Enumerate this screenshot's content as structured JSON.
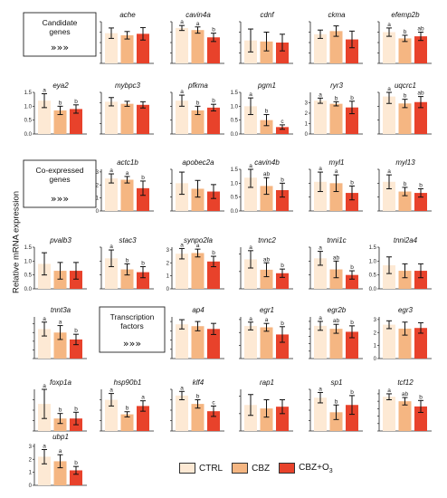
{
  "y_axis_label": "Relative mRNA expression",
  "legend": [
    {
      "label": "CTRL",
      "color": "#fde9d4"
    },
    {
      "label": "CBZ",
      "color": "#f5b682"
    },
    {
      "label": "CBZ+O",
      "subscript": "3",
      "color": "#e8422b"
    }
  ],
  "section_boxes": [
    {
      "label": "Candidate genes",
      "arrows": "»»»"
    },
    {
      "label": "Co-expressed genes",
      "arrows": "»»»"
    },
    {
      "label": "Transcription factors",
      "arrows": "»»»"
    }
  ],
  "chart_data": [
    {
      "type": "bar",
      "title": "ache",
      "categories": [
        "CTRL",
        "CBZ",
        "CBZ+O3"
      ],
      "values": [
        1.45,
        1.35,
        1.42
      ],
      "errors": [
        0.25,
        0.18,
        0.3
      ],
      "letters": [
        "",
        "",
        ""
      ],
      "ylim": [
        0,
        2
      ],
      "yticks": [
        0,
        0.5,
        1,
        1.5,
        2
      ],
      "ytick_labels": [
        "",
        "",
        "",
        "",
        ""
      ]
    },
    {
      "type": "bar",
      "title": "cavin4a",
      "categories": [
        "CTRL",
        "CBZ",
        "CBZ+O3"
      ],
      "values": [
        1.7,
        1.6,
        1.25
      ],
      "errors": [
        0.12,
        0.15,
        0.2
      ],
      "letters": [
        "a",
        "a",
        "b"
      ],
      "ylim": [
        0,
        2
      ],
      "yticks": [
        0,
        0.5,
        1,
        1.5,
        2
      ],
      "ytick_labels": [
        "",
        "",
        "",
        "",
        ""
      ]
    },
    {
      "type": "bar",
      "title": "cdnf",
      "categories": [
        "CTRL",
        "CBZ",
        "CBZ+O3"
      ],
      "values": [
        1.1,
        1.05,
        1.0
      ],
      "errors": [
        0.55,
        0.45,
        0.4
      ],
      "letters": [
        "",
        "",
        ""
      ],
      "ylim": [
        0,
        2
      ],
      "yticks": [
        0,
        0.5,
        1,
        1.5,
        2
      ],
      "ytick_labels": [
        "",
        "",
        "",
        "",
        ""
      ]
    },
    {
      "type": "bar",
      "title": "ckma",
      "categories": [
        "CTRL",
        "CBZ",
        "CBZ+O3"
      ],
      "values": [
        1.4,
        1.55,
        1.15
      ],
      "errors": [
        0.2,
        0.25,
        0.4
      ],
      "letters": [
        "",
        "",
        ""
      ],
      "ylim": [
        0,
        2
      ],
      "yticks": [
        0,
        0.5,
        1,
        1.5,
        2
      ],
      "ytick_labels": [
        "",
        "",
        "",
        "",
        ""
      ]
    },
    {
      "type": "bar",
      "title": "efemp2b",
      "categories": [
        "CTRL",
        "CBZ",
        "CBZ+O3"
      ],
      "values": [
        1.5,
        1.2,
        1.3
      ],
      "errors": [
        0.2,
        0.15,
        0.2
      ],
      "letters": [
        "a",
        "b",
        "ab"
      ],
      "ylim": [
        0,
        2
      ],
      "yticks": [
        0,
        0.5,
        1,
        1.5,
        2
      ],
      "ytick_labels": [
        "",
        "",
        "",
        "",
        ""
      ]
    },
    {
      "type": "bar",
      "title": "eya2",
      "categories": [
        "CTRL",
        "CBZ",
        "CBZ+O3"
      ],
      "values": [
        1.2,
        0.85,
        0.9
      ],
      "errors": [
        0.25,
        0.15,
        0.15
      ],
      "letters": [
        "a",
        "b",
        "b"
      ],
      "ylim": [
        0,
        1.5
      ],
      "yticks": [
        0,
        0.5,
        1.0,
        1.5
      ],
      "ytick_labels": [
        "0.0",
        "0.5",
        "1.0",
        "1.5"
      ]
    },
    {
      "type": "bar",
      "title": "mybpc3",
      "categories": [
        "CTRL",
        "CBZ",
        "CBZ+O3"
      ],
      "values": [
        1.55,
        1.45,
        1.4
      ],
      "errors": [
        0.2,
        0.12,
        0.15
      ],
      "letters": [
        "",
        "",
        ""
      ],
      "ylim": [
        0,
        2
      ],
      "yticks": [
        0,
        0.5,
        1,
        1.5,
        2
      ],
      "ytick_labels": [
        "",
        "",
        "",
        "",
        ""
      ]
    },
    {
      "type": "bar",
      "title": "pfkma",
      "categories": [
        "CTRL",
        "CBZ",
        "CBZ+O3"
      ],
      "values": [
        1.2,
        0.85,
        0.95
      ],
      "errors": [
        0.2,
        0.15,
        0.12
      ],
      "letters": [
        "a",
        "b",
        "b"
      ],
      "ylim": [
        0,
        1.5
      ],
      "yticks": [
        0,
        0.5,
        1.0,
        1.5
      ],
      "ytick_labels": [
        "",
        "",
        "",
        ""
      ]
    },
    {
      "type": "bar",
      "title": "pgm1",
      "categories": [
        "CTRL",
        "CBZ",
        "CBZ+O3"
      ],
      "values": [
        1.0,
        0.5,
        0.25
      ],
      "errors": [
        0.3,
        0.2,
        0.08
      ],
      "letters": [
        "a",
        "b",
        "c"
      ],
      "ylim": [
        0,
        1.5
      ],
      "yticks": [
        0,
        0.5,
        1.0,
        1.5
      ],
      "ytick_labels": [
        "0.0",
        "0.5",
        "1.0",
        "1.5"
      ]
    },
    {
      "type": "bar",
      "title": "ryr3",
      "categories": [
        "CTRL",
        "CBZ",
        "CBZ+O3"
      ],
      "values": [
        3.2,
        2.9,
        2.55
      ],
      "errors": [
        0.25,
        0.2,
        0.6
      ],
      "letters": [
        "a",
        "b",
        "b"
      ],
      "ylim": [
        0,
        4
      ],
      "yticks": [
        0,
        1,
        2,
        3
      ],
      "ytick_labels": [
        "0",
        "1",
        "2",
        "3"
      ]
    },
    {
      "type": "bar",
      "title": "uqcrc1",
      "categories": [
        "CTRL",
        "CBZ",
        "CBZ+O3"
      ],
      "values": [
        1.35,
        1.1,
        1.15
      ],
      "errors": [
        0.25,
        0.15,
        0.2
      ],
      "letters": [
        "a",
        "b",
        "ab"
      ],
      "ylim": [
        0,
        1.5
      ],
      "yticks": [
        0,
        0.5,
        1.0,
        1.5
      ],
      "ytick_labels": [
        "",
        "",
        "",
        ""
      ]
    },
    {
      "type": "bar",
      "title": "actc1b",
      "categories": [
        "CTRL",
        "CBZ",
        "CBZ+O3"
      ],
      "values": [
        2.5,
        2.4,
        1.75
      ],
      "errors": [
        0.35,
        0.25,
        0.55
      ],
      "letters": [
        "a",
        "a",
        "b"
      ],
      "ylim": [
        0,
        3.2
      ],
      "yticks": [
        0,
        1,
        2,
        3
      ],
      "ytick_labels": [
        "0",
        "1",
        "2",
        "3"
      ]
    },
    {
      "type": "bar",
      "title": "apobec2a",
      "categories": [
        "CTRL",
        "CBZ",
        "CBZ+O3"
      ],
      "values": [
        1.0,
        0.8,
        0.7
      ],
      "errors": [
        0.4,
        0.3,
        0.25
      ],
      "letters": [
        "",
        "",
        ""
      ],
      "ylim": [
        0,
        1.5
      ],
      "yticks": [
        0,
        0.5,
        1.0,
        1.5
      ],
      "ytick_labels": [
        "",
        "",
        "",
        ""
      ]
    },
    {
      "type": "bar",
      "title": "cavin4b",
      "categories": [
        "CTRL",
        "CBZ",
        "CBZ+O3"
      ],
      "values": [
        1.2,
        0.9,
        0.75
      ],
      "errors": [
        0.35,
        0.3,
        0.25
      ],
      "letters": [
        "a",
        "ab",
        "b"
      ],
      "ylim": [
        0,
        1.5
      ],
      "yticks": [
        0,
        0.5,
        1.0,
        1.5
      ],
      "ytick_labels": [
        "0.0",
        "0.5",
        "1.0",
        "1.5"
      ]
    },
    {
      "type": "bar",
      "title": "myl1",
      "categories": [
        "CTRL",
        "CBZ",
        "CBZ+O3"
      ],
      "values": [
        1.05,
        1.0,
        0.65
      ],
      "errors": [
        0.35,
        0.3,
        0.25
      ],
      "letters": [
        "a",
        "a",
        "b"
      ],
      "ylim": [
        0,
        1.5
      ],
      "yticks": [
        0,
        0.5,
        1.0,
        1.5
      ],
      "ytick_labels": [
        "",
        "",
        "",
        ""
      ]
    },
    {
      "type": "bar",
      "title": "myl13",
      "categories": [
        "CTRL",
        "CBZ",
        "CBZ+O3"
      ],
      "values": [
        1.05,
        0.7,
        0.65
      ],
      "errors": [
        0.25,
        0.15,
        0.15
      ],
      "letters": [
        "a",
        "b",
        "b"
      ],
      "ylim": [
        0,
        1.5
      ],
      "yticks": [
        0,
        0.5,
        1.0,
        1.5
      ],
      "ytick_labels": [
        "",
        "",
        "",
        ""
      ]
    },
    {
      "type": "bar",
      "title": "pvalb3",
      "categories": [
        "CTRL",
        "CBZ",
        "CBZ+O3"
      ],
      "values": [
        0.9,
        0.65,
        0.65
      ],
      "errors": [
        0.4,
        0.3,
        0.3
      ],
      "letters": [
        "",
        "",
        ""
      ],
      "ylim": [
        0,
        1.5
      ],
      "yticks": [
        0,
        0.5,
        1.0,
        1.5
      ],
      "ytick_labels": [
        "0.0",
        "0.5",
        "1.0",
        "1.5"
      ]
    },
    {
      "type": "bar",
      "title": "stac3",
      "categories": [
        "CTRL",
        "CBZ",
        "CBZ+O3"
      ],
      "values": [
        1.1,
        0.7,
        0.6
      ],
      "errors": [
        0.3,
        0.2,
        0.2
      ],
      "letters": [
        "a",
        "b",
        "b"
      ],
      "ylim": [
        0,
        1.5
      ],
      "yticks": [
        0,
        0.5,
        1.0,
        1.5
      ],
      "ytick_labels": [
        "",
        "",
        "",
        ""
      ]
    },
    {
      "type": "bar",
      "title": "synpo2la",
      "categories": [
        "CTRL",
        "CBZ",
        "CBZ+O3"
      ],
      "values": [
        2.7,
        2.75,
        2.1
      ],
      "errors": [
        0.4,
        0.3,
        0.4
      ],
      "letters": [
        "a",
        "a",
        "b"
      ],
      "ylim": [
        0,
        3.2
      ],
      "yticks": [
        0,
        1,
        2,
        3
      ],
      "ytick_labels": [
        "0",
        "1",
        "2",
        "3"
      ]
    },
    {
      "type": "bar",
      "title": "tnnc2",
      "categories": [
        "CTRL",
        "CBZ",
        "CBZ+O3"
      ],
      "values": [
        0.85,
        0.55,
        0.45
      ],
      "errors": [
        0.25,
        0.2,
        0.12
      ],
      "letters": [
        "a",
        "ab",
        "b"
      ],
      "ylim": [
        0,
        1.2
      ],
      "yticks": [
        0,
        0.5,
        1.0
      ],
      "ytick_labels": [
        "",
        "",
        ""
      ]
    },
    {
      "type": "bar",
      "title": "tnni1c",
      "categories": [
        "CTRL",
        "CBZ",
        "CBZ+O3"
      ],
      "values": [
        1.1,
        0.7,
        0.5
      ],
      "errors": [
        0.25,
        0.3,
        0.15
      ],
      "letters": [
        "a",
        "ab",
        "b"
      ],
      "ylim": [
        0,
        1.5
      ],
      "yticks": [
        0,
        0.5,
        1.0,
        1.5
      ],
      "ytick_labels": [
        "",
        "",
        "",
        ""
      ]
    },
    {
      "type": "bar",
      "title": "tnni2a4",
      "categories": [
        "CTRL",
        "CBZ",
        "CBZ+O3"
      ],
      "values": [
        0.85,
        0.65,
        0.65
      ],
      "errors": [
        0.3,
        0.25,
        0.25
      ],
      "letters": [
        "",
        "",
        ""
      ],
      "ylim": [
        0,
        1.5
      ],
      "yticks": [
        0,
        0.5,
        1.0,
        1.5
      ],
      "ytick_labels": [
        "0.0",
        "0.5",
        "1.0",
        "1.5"
      ]
    },
    {
      "type": "bar",
      "title": "tnnt3a",
      "categories": [
        "CTRL",
        "CBZ",
        "CBZ+O3"
      ],
      "values": [
        0.85,
        0.75,
        0.55
      ],
      "errors": [
        0.2,
        0.2,
        0.15
      ],
      "letters": [
        "a",
        "a",
        "b"
      ],
      "ylim": [
        0,
        1.2
      ],
      "yticks": [
        0,
        0.25,
        0.5,
        0.75,
        1.0
      ],
      "ytick_labels": [
        "",
        "",
        "",
        "",
        ""
      ]
    },
    {
      "type": "bar",
      "title": "ap4",
      "categories": [
        "CTRL",
        "CBZ",
        "CBZ+O3"
      ],
      "values": [
        3.7,
        3.5,
        3.2
      ],
      "errors": [
        0.5,
        0.5,
        0.6
      ],
      "letters": [
        "",
        "",
        ""
      ],
      "ylim": [
        0,
        4.5
      ],
      "yticks": [
        0,
        1,
        2,
        3,
        4
      ],
      "ytick_labels": [
        "",
        "",
        "",
        "",
        ""
      ]
    },
    {
      "type": "bar",
      "title": "egr1",
      "categories": [
        "CTRL",
        "CBZ",
        "CBZ+O3"
      ],
      "values": [
        2.5,
        2.4,
        1.85
      ],
      "errors": [
        0.3,
        0.3,
        0.6
      ],
      "letters": [
        "a",
        "a",
        "b"
      ],
      "ylim": [
        0,
        3.2
      ],
      "yticks": [
        0,
        1,
        2,
        3
      ],
      "ytick_labels": [
        "",
        "",
        "",
        ""
      ]
    },
    {
      "type": "bar",
      "title": "egr2b",
      "categories": [
        "CTRL",
        "CBZ",
        "CBZ+O3"
      ],
      "values": [
        2.2,
        2.0,
        1.8
      ],
      "errors": [
        0.3,
        0.3,
        0.4
      ],
      "letters": [
        "a",
        "ab",
        "b"
      ],
      "ylim": [
        0,
        2.8
      ],
      "yticks": [
        0,
        0.5,
        1.0,
        1.5,
        2.0,
        2.5
      ],
      "ytick_labels": [
        "",
        "",
        "",
        "",
        "",
        ""
      ]
    },
    {
      "type": "bar",
      "title": "egr3",
      "categories": [
        "CTRL",
        "CBZ",
        "CBZ+O3"
      ],
      "values": [
        2.6,
        2.3,
        2.35
      ],
      "errors": [
        0.3,
        0.5,
        0.4
      ],
      "letters": [
        "",
        "",
        ""
      ],
      "ylim": [
        0,
        3.2
      ],
      "yticks": [
        0,
        1,
        2,
        3
      ],
      "ytick_labels": [
        "0",
        "1",
        "2",
        "3"
      ]
    },
    {
      "type": "bar",
      "title": "foxp1a",
      "categories": [
        "CTRL",
        "CBZ",
        "CBZ+O3"
      ],
      "values": [
        0.65,
        0.3,
        0.3
      ],
      "errors": [
        0.35,
        0.12,
        0.15
      ],
      "letters": [
        "a",
        "b",
        "b"
      ],
      "ylim": [
        0,
        1.0
      ],
      "yticks": [
        0,
        0.25,
        0.5,
        0.75
      ],
      "ytick_labels": [
        "",
        "",
        "",
        ""
      ]
    },
    {
      "type": "bar",
      "title": "hsp90b1",
      "categories": [
        "CTRL",
        "CBZ",
        "CBZ+O3"
      ],
      "values": [
        0.6,
        0.32,
        0.48
      ],
      "errors": [
        0.12,
        0.05,
        0.1
      ],
      "letters": [
        "a",
        "b",
        "a"
      ],
      "ylim": [
        0,
        0.8
      ],
      "yticks": [
        0,
        0.2,
        0.4,
        0.6
      ],
      "ytick_labels": [
        "",
        "",
        "",
        ""
      ]
    },
    {
      "type": "bar",
      "title": "klf4",
      "categories": [
        "CTRL",
        "CBZ",
        "CBZ+O3"
      ],
      "values": [
        1.7,
        1.3,
        0.95
      ],
      "errors": [
        0.2,
        0.2,
        0.25
      ],
      "letters": [
        "a",
        "b",
        "c"
      ],
      "ylim": [
        0,
        2
      ],
      "yticks": [
        0,
        0.5,
        1,
        1.5,
        2
      ],
      "ytick_labels": [
        "",
        "",
        "",
        "",
        ""
      ]
    },
    {
      "type": "bar",
      "title": "rap1",
      "categories": [
        "CTRL",
        "CBZ",
        "CBZ+O3"
      ],
      "values": [
        0.75,
        0.65,
        0.7
      ],
      "errors": [
        0.3,
        0.25,
        0.2
      ],
      "letters": [
        "",
        "",
        ""
      ],
      "ylim": [
        0,
        1.2
      ],
      "yticks": [
        0,
        0.5,
        1.0
      ],
      "ytick_labels": [
        "",
        "",
        ""
      ]
    },
    {
      "type": "bar",
      "title": "sp1",
      "categories": [
        "CTRL",
        "CBZ",
        "CBZ+O3"
      ],
      "values": [
        1.6,
        0.9,
        1.25
      ],
      "errors": [
        0.25,
        0.35,
        0.45
      ],
      "letters": [
        "a",
        "b",
        "b"
      ],
      "ylim": [
        0,
        2
      ],
      "yticks": [
        0,
        0.5,
        1,
        1.5,
        2
      ],
      "ytick_labels": [
        "",
        "",
        "",
        "",
        ""
      ]
    },
    {
      "type": "bar",
      "title": "tcf12",
      "categories": [
        "CTRL",
        "CBZ",
        "CBZ+O3"
      ],
      "values": [
        2.3,
        2.0,
        1.65
      ],
      "errors": [
        0.2,
        0.25,
        0.4
      ],
      "letters": [
        "a",
        "ab",
        "b"
      ],
      "ylim": [
        0,
        2.8
      ],
      "yticks": [
        0,
        0.5,
        1.0,
        1.5,
        2.0,
        2.5
      ],
      "ytick_labels": [
        "",
        "",
        "",
        "",
        "",
        ""
      ]
    },
    {
      "type": "bar",
      "title": "ubp1",
      "categories": [
        "CTRL",
        "CBZ",
        "CBZ+O3"
      ],
      "values": [
        2.2,
        1.85,
        1.15
      ],
      "errors": [
        0.55,
        0.5,
        0.3
      ],
      "letters": [
        "a",
        "a",
        "b"
      ],
      "ylim": [
        0,
        3.2
      ],
      "yticks": [
        0,
        1,
        2,
        3
      ],
      "ytick_labels": [
        "0",
        "1",
        "2",
        "3"
      ]
    }
  ]
}
